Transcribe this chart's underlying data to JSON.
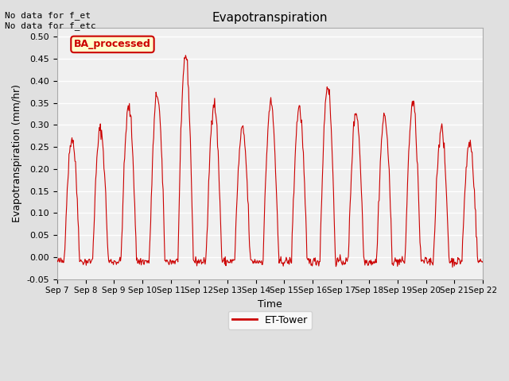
{
  "title": "Evapotranspiration",
  "ylabel": "Evapotranspiration (mm/hr)",
  "xlabel": "Time",
  "top_left_text": "No data for f_et\nNo data for f_etc",
  "legend_label": "ET-Tower",
  "legend_color": "#cc0000",
  "line_color": "#cc0000",
  "fig_bg_color": "#e0e0e0",
  "plot_bg_color": "#f0f0f0",
  "ylim": [
    -0.05,
    0.52
  ],
  "yticks": [
    -0.05,
    0.0,
    0.05,
    0.1,
    0.15,
    0.2,
    0.25,
    0.3,
    0.35,
    0.4,
    0.45,
    0.5
  ],
  "xtick_labels": [
    "Sep 7",
    "Sep 8",
    "Sep 9",
    "Sep 10",
    "Sep 11",
    "Sep 12",
    "Sep 13",
    "Sep 14",
    "Sep 15",
    "Sep 16",
    "Sep 17",
    "Sep 18",
    "Sep 19",
    "Sep 20",
    "Sep 21",
    "Sep 22"
  ],
  "num_days": 15,
  "ba_processed_text": "BA_processed",
  "ba_box_facecolor": "#ffffcc",
  "ba_box_edgecolor": "#cc0000",
  "ba_text_color": "#cc0000",
  "daily_peaks": [
    0.27,
    0.29,
    0.34,
    0.37,
    0.46,
    0.35,
    0.29,
    0.35,
    0.34,
    0.39,
    0.33,
    0.32,
    0.35,
    0.29,
    0.26
  ]
}
